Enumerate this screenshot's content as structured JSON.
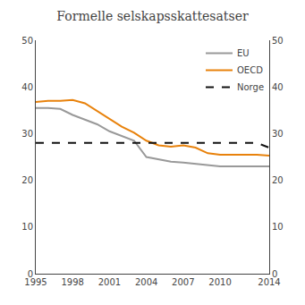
{
  "chart_data": {
    "type": "line",
    "title": "Formelle selskapsskattesatser",
    "x": [
      1995,
      1996,
      1997,
      1998,
      1999,
      2000,
      2001,
      2002,
      2003,
      2004,
      2005,
      2006,
      2007,
      2008,
      2009,
      2010,
      2011,
      2012,
      2013,
      2014
    ],
    "series": [
      {
        "name": "EU",
        "color": "#999999",
        "line_style": "solid",
        "values": [
          35.5,
          35.5,
          35.3,
          34.0,
          33.0,
          32.0,
          30.5,
          29.5,
          28.5,
          25.0,
          24.5,
          24.0,
          23.8,
          23.5,
          23.2,
          23.0,
          23.0,
          23.0,
          23.0,
          23.0
        ]
      },
      {
        "name": "OECD",
        "color": "#E8820C",
        "line_style": "solid",
        "values": [
          36.8,
          37.0,
          37.0,
          37.2,
          36.5,
          34.8,
          33.2,
          31.5,
          30.2,
          28.5,
          27.5,
          27.2,
          27.5,
          27.0,
          25.8,
          25.5,
          25.5,
          25.5,
          25.5,
          25.3
        ]
      },
      {
        "name": "Norge",
        "color": "#111111",
        "line_style": "dashed",
        "values": [
          28.0,
          28.0,
          28.0,
          28.0,
          28.0,
          28.0,
          28.0,
          28.0,
          28.0,
          28.0,
          28.0,
          28.0,
          28.0,
          28.0,
          28.0,
          28.0,
          28.0,
          28.0,
          28.0,
          27.0
        ]
      }
    ],
    "xlim": [
      1995,
      2014
    ],
    "xticks": [
      1995,
      1998,
      2001,
      2004,
      2007,
      2010,
      2014
    ],
    "ylim": [
      0,
      50
    ],
    "yticks": [
      0,
      10,
      20,
      30,
      40,
      50
    ],
    "y2lim": [
      0,
      50
    ],
    "y2ticks": [
      0,
      10,
      20,
      30,
      40,
      50
    ],
    "grid": false,
    "legend": "upper right"
  }
}
